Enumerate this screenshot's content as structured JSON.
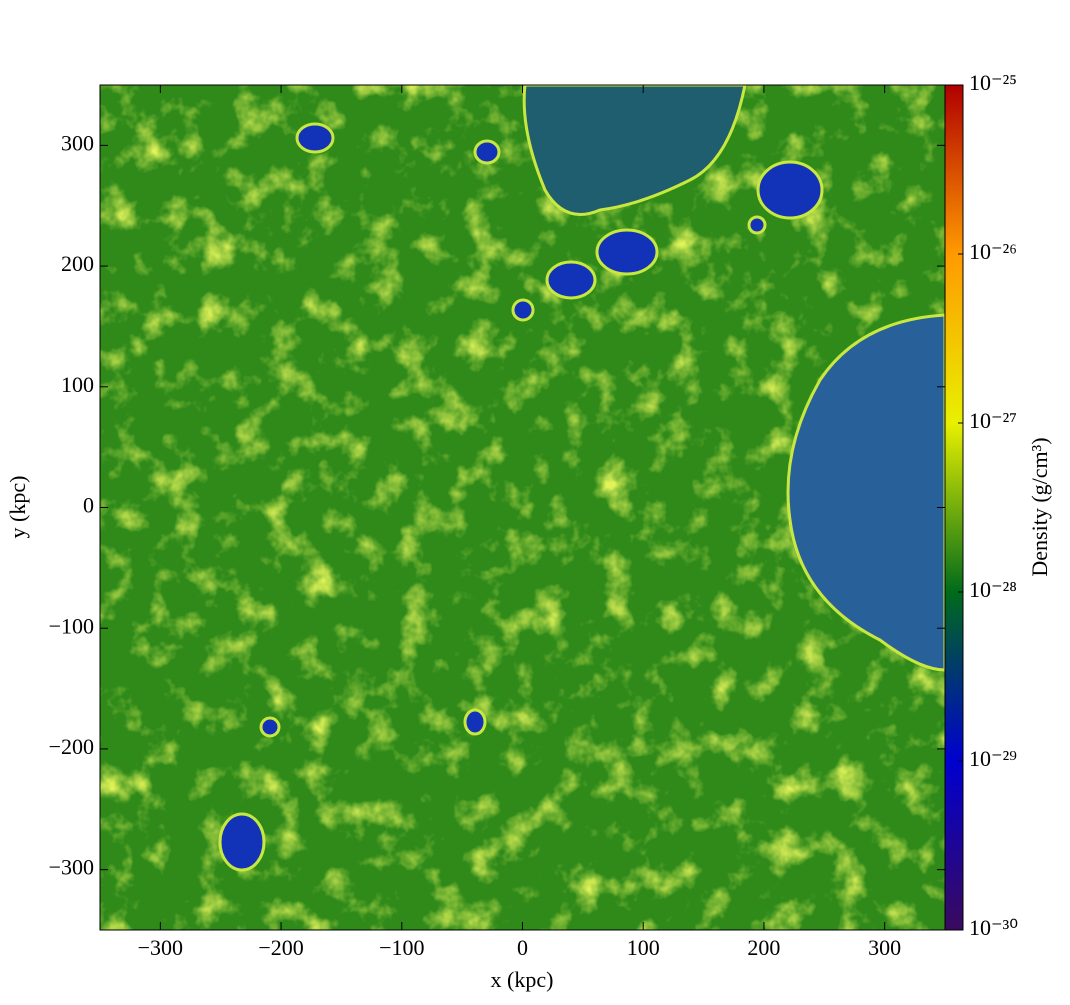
{
  "chart_data": {
    "type": "heatmap",
    "xlabel": "x  (kpc)",
    "ylabel": "y  (kpc)",
    "xlim": [
      -350,
      350
    ],
    "ylim": [
      -350,
      350
    ],
    "xticks": [
      {
        "value": -300,
        "label": "−300"
      },
      {
        "value": -200,
        "label": "−200"
      },
      {
        "value": -100,
        "label": "−100"
      },
      0,
      100,
      200,
      300
    ],
    "yticks": [
      {
        "value": -300,
        "label": "−300"
      },
      {
        "value": -200,
        "label": "−200"
      },
      {
        "value": -100,
        "label": "−100"
      },
      0,
      100,
      200,
      300
    ],
    "colorbar": {
      "label": "Density  (g/cm³)",
      "log": true,
      "lim": [
        1e-30,
        1e-25
      ],
      "ticks": [
        {
          "value": 1e-30,
          "label": "10⁻³⁰"
        },
        {
          "value": 1e-29,
          "label": "10⁻²⁹"
        },
        {
          "value": 1e-28,
          "label": "10⁻²⁸"
        },
        {
          "value": 1e-27,
          "label": "10⁻²⁷"
        },
        {
          "value": 1e-26,
          "label": "10⁻²⁶"
        },
        {
          "value": 1e-25,
          "label": "10⁻²⁵"
        }
      ],
      "colors": [
        "#3a0a5e",
        "#0000d0",
        "#006b1a",
        "#e8f000",
        "#ff9a00",
        "#b00000"
      ]
    }
  }
}
